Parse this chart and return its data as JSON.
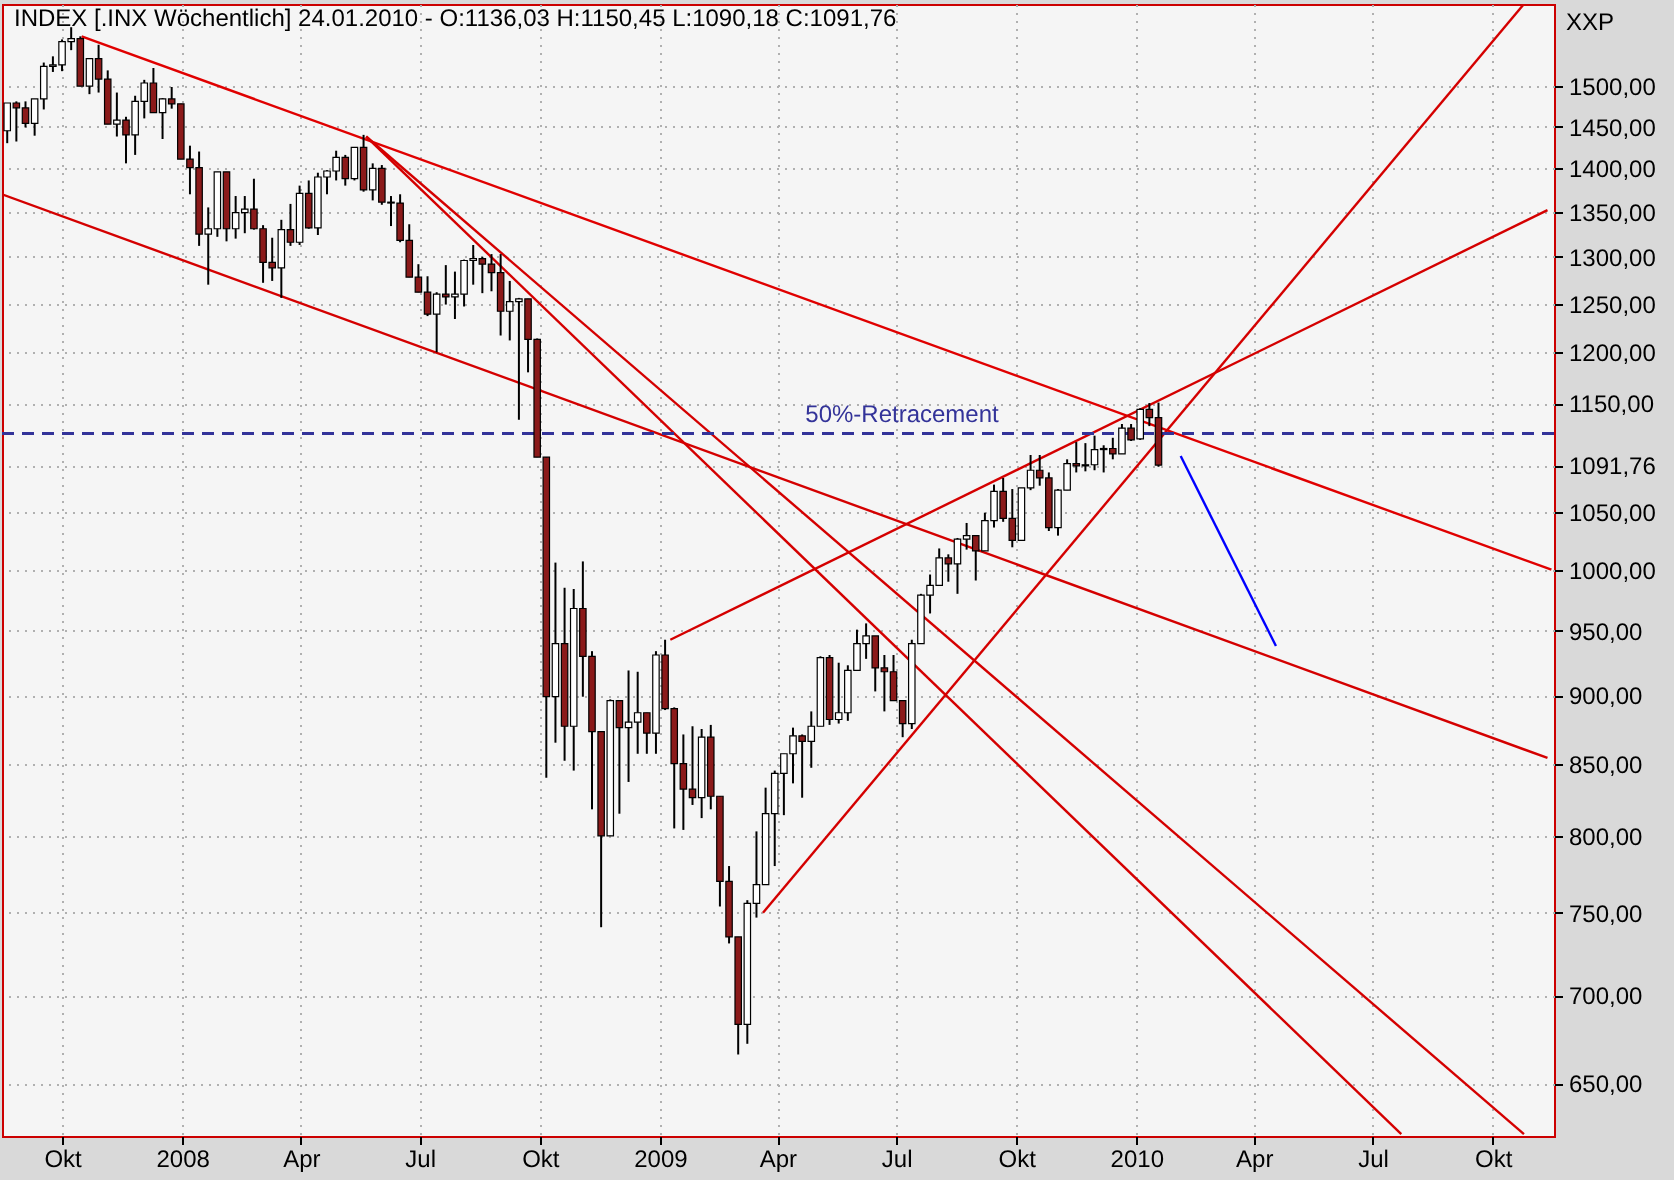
{
  "chart_data": {
    "type": "candlestick",
    "title": "INDEX [.INX  Wöchentlich] 24.01.2010 - O:1136,03 H:1150,45 L:1090,18 C:1091,76",
    "colors": [
      "#ffffff",
      "#8b1a1a",
      "#8b1a1a",
      "#ffffff",
      "#ffffff",
      "#ffffff",
      "#ffffff",
      "#ffffff",
      "#8b1a1a",
      "#ffffff",
      "#8b1a1a",
      "#8b1a1a",
      "#ffffff",
      "#8b1a1a",
      "#ffffff",
      "#ffffff",
      "#8b1a1a",
      "#ffffff",
      "#8b1a1a",
      "#8b1a1a",
      "#8b1a1a",
      "#8b1a1a",
      "#ffffff",
      "#ffffff",
      "#8b1a1a",
      "#ffffff",
      "#ffffff",
      "#8b1a1a",
      "#8b1a1a",
      "#8b1a1a",
      "#ffffff",
      "#8b1a1a",
      "#ffffff",
      "#8b1a1a",
      "#ffffff",
      "#ffffff",
      "#ffffff",
      "#8b1a1a",
      "#ffffff",
      "#8b1a1a",
      "#ffffff",
      "#8b1a1a",
      "#8b1a1a",
      "#8b1a1a",
      "#8b1a1a",
      "#8b1a1a",
      "#8b1a1a",
      "#ffffff",
      "#8b1a1a",
      "#ffffff",
      "#ffffff",
      "#ffffff",
      "#8b1a1a",
      "#8b1a1a",
      "#8b1a1a",
      "#ffffff",
      "#ffffff",
      "#8b1a1a",
      "#8b1a1a",
      "#8b1a1a",
      "#ffffff",
      "#8b1a1a",
      "#ffffff",
      "#8b1a1a",
      "#8b1a1a",
      "#8b1a1a",
      "#ffffff",
      "#8b1a1a",
      "#ffffff",
      "#ffffff",
      "#8b1a1a",
      "#ffffff",
      "#8b1a1a",
      "#8b1a1a",
      "#8b1a1a",
      "#8b1a1a",
      "#ffffff",
      "#8b1a1a",
      "#8b1a1a",
      "#8b1a1a",
      "#8b1a1a",
      "#ffffff",
      "#ffffff",
      "#ffffff",
      "#ffffff",
      "#ffffff",
      "#ffffff",
      "#8b1a1a",
      "#ffffff",
      "#ffffff",
      "#8b1a1a",
      "#ffffff",
      "#ffffff",
      "#ffffff",
      "#ffffff",
      "#8b1a1a",
      "#8b1a1a",
      "#8b1a1a",
      "#8b1a1a",
      "#ffffff",
      "#ffffff",
      "#ffffff",
      "#ffffff",
      "#8b1a1a",
      "#ffffff",
      "#ffffff",
      "#8b1a1a",
      "#ffffff",
      "#ffffff",
      "#8b1a1a",
      "#8b1a1a",
      "#ffffff",
      "#ffffff",
      "#8b1a1a",
      "#8b1a1a",
      "#ffffff",
      "#ffffff",
      "#8b1a1a",
      "#ffffff",
      "#ffffff",
      "#ffffff",
      "#8b1a1a",
      "#ffffff",
      "#8b1a1a",
      "#ffffff",
      "#8b1a1a",
      "#8b1a1a"
    ],
    "log": "y",
    "grid": true,
    "x": [
      "2007-08-20",
      "2007-08-27",
      "2007-09-03",
      "2007-09-10",
      "2007-09-17",
      "2007-09-24",
      "2007-10-01",
      "2007-10-08",
      "2007-10-15",
      "2007-10-22",
      "2007-10-29",
      "2007-11-05",
      "2007-11-12",
      "2007-11-19",
      "2007-11-26",
      "2007-12-03",
      "2007-12-10",
      "2007-12-17",
      "2007-12-24",
      "2007-12-31",
      "2008-01-07",
      "2008-01-14",
      "2008-01-21",
      "2008-01-28",
      "2008-02-04",
      "2008-02-11",
      "2008-02-18",
      "2008-02-25",
      "2008-03-03",
      "2008-03-10",
      "2008-03-17",
      "2008-03-24",
      "2008-03-31",
      "2008-04-07",
      "2008-04-14",
      "2008-04-21",
      "2008-04-28",
      "2008-05-05",
      "2008-05-12",
      "2008-05-19",
      "2008-05-26",
      "2008-06-02",
      "2008-06-09",
      "2008-06-16",
      "2008-06-23",
      "2008-06-30",
      "2008-07-07",
      "2008-07-14",
      "2008-07-21",
      "2008-07-28",
      "2008-08-04",
      "2008-08-11",
      "2008-08-18",
      "2008-08-25",
      "2008-09-01",
      "2008-09-08",
      "2008-09-15",
      "2008-09-22",
      "2008-09-29",
      "2008-10-06",
      "2008-10-13",
      "2008-10-20",
      "2008-10-27",
      "2008-11-03",
      "2008-11-10",
      "2008-11-17",
      "2008-11-24",
      "2008-12-01",
      "2008-12-08",
      "2008-12-15",
      "2008-12-22",
      "2008-12-29",
      "2009-01-05",
      "2009-01-12",
      "2009-01-19",
      "2009-01-26",
      "2009-02-02",
      "2009-02-09",
      "2009-02-16",
      "2009-02-23",
      "2009-03-02",
      "2009-03-09",
      "2009-03-16",
      "2009-03-23",
      "2009-03-30",
      "2009-04-06",
      "2009-04-13",
      "2009-04-20",
      "2009-04-27",
      "2009-05-04",
      "2009-05-11",
      "2009-05-18",
      "2009-05-25",
      "2009-06-01",
      "2009-06-08",
      "2009-06-15",
      "2009-06-22",
      "2009-06-29",
      "2009-07-06",
      "2009-07-13",
      "2009-07-20",
      "2009-07-27",
      "2009-08-03",
      "2009-08-10",
      "2009-08-17",
      "2009-08-24",
      "2009-08-31",
      "2009-09-07",
      "2009-09-14",
      "2009-09-21",
      "2009-09-28",
      "2009-10-05",
      "2009-10-12",
      "2009-10-19",
      "2009-10-26",
      "2009-11-02",
      "2009-11-09",
      "2009-11-16",
      "2009-11-23",
      "2009-11-30",
      "2009-12-07",
      "2009-12-14",
      "2009-12-21",
      "2009-12-28",
      "2010-01-04",
      "2010-01-11",
      "2010-01-18"
    ],
    "ohlc": [
      [
        1445,
        1479,
        1430,
        1479
      ],
      [
        1479,
        1481,
        1432,
        1473
      ],
      [
        1473,
        1481,
        1449,
        1454
      ],
      [
        1454,
        1484,
        1439,
        1484
      ],
      [
        1484,
        1530,
        1471,
        1525
      ],
      [
        1525,
        1538,
        1518,
        1527
      ],
      [
        1527,
        1560,
        1519,
        1557
      ],
      [
        1557,
        1576,
        1546,
        1561
      ],
      [
        1561,
        1564,
        1500,
        1500
      ],
      [
        1500,
        1535,
        1490,
        1535
      ],
      [
        1535,
        1553,
        1492,
        1509
      ],
      [
        1509,
        1520,
        1453,
        1453
      ],
      [
        1453,
        1492,
        1438,
        1458
      ],
      [
        1458,
        1462,
        1406,
        1440
      ],
      [
        1440,
        1488,
        1416,
        1481
      ],
      [
        1481,
        1508,
        1460,
        1504
      ],
      [
        1504,
        1523,
        1467,
        1467
      ],
      [
        1467,
        1485,
        1435,
        1484
      ],
      [
        1484,
        1499,
        1472,
        1478
      ],
      [
        1478,
        1478,
        1411,
        1411
      ],
      [
        1411,
        1427,
        1370,
        1401
      ],
      [
        1401,
        1420,
        1312,
        1325
      ],
      [
        1325,
        1355,
        1270,
        1331
      ],
      [
        1331,
        1396,
        1322,
        1396
      ],
      [
        1396,
        1396,
        1317,
        1331
      ],
      [
        1331,
        1368,
        1320,
        1349
      ],
      [
        1349,
        1368,
        1326,
        1353
      ],
      [
        1353,
        1388,
        1330,
        1331
      ],
      [
        1331,
        1335,
        1272,
        1294
      ],
      [
        1294,
        1321,
        1274,
        1288
      ],
      [
        1288,
        1341,
        1256,
        1330
      ],
      [
        1330,
        1359,
        1312,
        1316
      ],
      [
        1316,
        1380,
        1313,
        1371
      ],
      [
        1371,
        1386,
        1331,
        1332
      ],
      [
        1332,
        1395,
        1324,
        1390
      ],
      [
        1390,
        1398,
        1370,
        1397
      ],
      [
        1397,
        1421,
        1386,
        1413
      ],
      [
        1413,
        1416,
        1380,
        1388
      ],
      [
        1388,
        1425,
        1386,
        1425
      ],
      [
        1425,
        1440,
        1373,
        1375
      ],
      [
        1375,
        1406,
        1363,
        1400
      ],
      [
        1400,
        1404,
        1358,
        1361
      ],
      [
        1361,
        1368,
        1334,
        1360
      ],
      [
        1360,
        1370,
        1316,
        1318
      ],
      [
        1318,
        1336,
        1278,
        1278
      ],
      [
        1278,
        1292,
        1262,
        1262
      ],
      [
        1262,
        1279,
        1237,
        1239
      ],
      [
        1239,
        1262,
        1200,
        1260
      ],
      [
        1260,
        1291,
        1249,
        1257
      ],
      [
        1257,
        1284,
        1234,
        1260
      ],
      [
        1260,
        1297,
        1247,
        1296
      ],
      [
        1296,
        1313,
        1270,
        1298
      ],
      [
        1298,
        1300,
        1261,
        1292
      ],
      [
        1292,
        1303,
        1263,
        1283
      ],
      [
        1283,
        1303,
        1217,
        1242
      ],
      [
        1242,
        1274,
        1212,
        1252
      ],
      [
        1252,
        1256,
        1134,
        1255
      ],
      [
        1255,
        1255,
        1180,
        1213
      ],
      [
        1213,
        1214,
        1099,
        1099
      ],
      [
        1099,
        1099,
        840,
        899
      ],
      [
        899,
        1006,
        865,
        940
      ],
      [
        940,
        985,
        852,
        877
      ],
      [
        877,
        984,
        845,
        968
      ],
      [
        968,
        1007,
        899,
        930
      ],
      [
        930,
        934,
        818,
        873
      ],
      [
        873,
        873,
        741,
        800
      ],
      [
        800,
        897,
        800,
        896
      ],
      [
        896,
        896,
        815,
        876
      ],
      [
        876,
        919,
        837,
        880
      ],
      [
        880,
        918,
        857,
        887
      ],
      [
        887,
        887,
        857,
        872
      ],
      [
        872,
        934,
        857,
        931
      ],
      [
        931,
        943,
        889,
        890
      ],
      [
        890,
        891,
        805,
        850
      ],
      [
        850,
        871,
        804,
        832
      ],
      [
        832,
        877,
        821,
        826
      ],
      [
        826,
        875,
        812,
        869
      ],
      [
        869,
        878,
        818,
        827
      ],
      [
        827,
        827,
        754,
        770
      ],
      [
        770,
        780,
        731,
        735
      ],
      [
        735,
        735,
        666,
        683
      ],
      [
        683,
        758,
        672,
        756
      ],
      [
        756,
        803,
        747,
        768
      ],
      [
        768,
        833,
        768,
        815
      ],
      [
        815,
        845,
        780,
        843
      ],
      [
        843,
        857,
        814,
        857
      ],
      [
        857,
        876,
        836,
        870
      ],
      [
        870,
        871,
        826,
        866
      ],
      [
        866,
        888,
        847,
        877
      ],
      [
        877,
        930,
        877,
        929
      ],
      [
        929,
        931,
        878,
        882
      ],
      [
        882,
        925,
        879,
        887
      ],
      [
        887,
        923,
        881,
        919
      ],
      [
        919,
        951,
        919,
        940
      ],
      [
        940,
        956,
        928,
        946
      ],
      [
        946,
        946,
        903,
        921
      ],
      [
        921,
        931,
        888,
        918
      ],
      [
        918,
        931,
        896,
        896
      ],
      [
        896,
        896,
        869,
        879
      ],
      [
        879,
        943,
        875,
        940
      ],
      [
        940,
        980,
        940,
        979
      ],
      [
        979,
        996,
        964,
        987
      ],
      [
        987,
        1018,
        987,
        1010
      ],
      [
        1010,
        1013,
        990,
        1005
      ],
      [
        1005,
        1027,
        980,
        1026
      ],
      [
        1026,
        1040,
        1017,
        1029
      ],
      [
        1029,
        1029,
        991,
        1016
      ],
      [
        1016,
        1049,
        1016,
        1042
      ],
      [
        1042,
        1074,
        1036,
        1068
      ],
      [
        1068,
        1080,
        1041,
        1044
      ],
      [
        1044,
        1070,
        1019,
        1025
      ],
      [
        1025,
        1071,
        1025,
        1071
      ],
      [
        1071,
        1101,
        1069,
        1087
      ],
      [
        1087,
        1101,
        1073,
        1080
      ],
      [
        1080,
        1085,
        1033,
        1036
      ],
      [
        1036,
        1070,
        1029,
        1069
      ],
      [
        1069,
        1097,
        1069,
        1093
      ],
      [
        1093,
        1113,
        1085,
        1091
      ],
      [
        1091,
        1112,
        1086,
        1092
      ],
      [
        1092,
        1119,
        1087,
        1106
      ],
      [
        1106,
        1110,
        1085,
        1107
      ],
      [
        1107,
        1117,
        1097,
        1102
      ],
      [
        1102,
        1130,
        1102,
        1126
      ],
      [
        1126,
        1130,
        1114,
        1115
      ],
      [
        1116,
        1145,
        1115,
        1144
      ],
      [
        1144,
        1150,
        1128,
        1136
      ],
      [
        1136.03,
        1150.45,
        1090.18,
        1091.76
      ]
    ],
    "series": [
      {
        "type": "line",
        "color": "#e00000",
        "x": [
          "2007-10-16",
          "2010-11-15"
        ],
        "values": [
          1564,
          1000
        ]
      },
      {
        "type": "line",
        "color": "#d40000",
        "x": [
          "2007-08-16",
          "2010-11-12"
        ],
        "values": [
          1370,
          854
        ]
      },
      {
        "type": "line",
        "color": "#d40000",
        "x": [
          "2008-05-21",
          "2010-07-23"
        ],
        "values": [
          1438,
          623
        ]
      },
      {
        "type": "line",
        "color": "#d40000",
        "x": [
          "2008-05-21",
          "2010-10-25"
        ],
        "values": [
          1438,
          623
        ]
      },
      {
        "type": "line",
        "color": "#d40000",
        "x": [
          "2009-01-09",
          "2010-11-12"
        ],
        "values": [
          943,
          1352
        ]
      },
      {
        "type": "line",
        "color": "#d40000",
        "x": [
          "2009-03-21",
          "2010-10-25"
        ],
        "values": [
          750,
          1607
        ]
      },
      {
        "type": "line",
        "color": "#0000ff",
        "x": [
          "2010-02-04",
          "2010-04-18"
        ],
        "values": [
          1100,
          938
        ]
      }
    ],
    "ref_lines": [
      {
        "axis": "y",
        "value": 1121,
        "label": "50%-Retracement",
        "color": "#333399",
        "line_style": "dashed"
      }
    ],
    "annotations": [
      "XXP"
    ],
    "xlim": [
      "2007-08-16",
      "2010-11-17"
    ],
    "xticks": [
      {
        "value": "2007-10-01",
        "label": "Okt"
      },
      {
        "value": "2008-01-01",
        "label": "2008"
      },
      {
        "value": "2008-04-01",
        "label": "Apr"
      },
      {
        "value": "2008-07-01",
        "label": "Jul"
      },
      {
        "value": "2008-10-01",
        "label": "Okt"
      },
      {
        "value": "2009-01-01",
        "label": "2009"
      },
      {
        "value": "2009-04-01",
        "label": "Apr"
      },
      {
        "value": "2009-07-01",
        "label": "Jul"
      },
      {
        "value": "2009-10-01",
        "label": "Okt"
      },
      {
        "value": "2010-01-01",
        "label": "2010"
      },
      {
        "value": "2010-04-01",
        "label": "Apr"
      },
      {
        "value": "2010-07-01",
        "label": "Jul"
      },
      {
        "value": "2010-10-01",
        "label": "Okt"
      }
    ],
    "ylim": [
      622,
      1607
    ],
    "yticks": [
      {
        "value": 650,
        "label": "650,00"
      },
      {
        "value": 700,
        "label": "700,00"
      },
      {
        "value": 750,
        "label": "750,00"
      },
      {
        "value": 800,
        "label": "800,00"
      },
      {
        "value": 850,
        "label": "850,00"
      },
      {
        "value": 900,
        "label": "900,00"
      },
      {
        "value": 950,
        "label": "950,00"
      },
      {
        "value": 1000,
        "label": "1000,00"
      },
      {
        "value": 1050,
        "label": "1050,00"
      },
      {
        "value": 1091.76,
        "label": "1091,76"
      },
      {
        "value": 1150,
        "label": "1150,00"
      },
      {
        "value": 1200,
        "label": "1200,00"
      },
      {
        "value": 1250,
        "label": "1250,00"
      },
      {
        "value": 1300,
        "label": "1300,00"
      },
      {
        "value": 1350,
        "label": "1350,00"
      },
      {
        "value": 1400,
        "label": "1400,00"
      },
      {
        "value": 1450,
        "label": "1450,00"
      },
      {
        "value": 1500,
        "label": "1500,00"
      }
    ]
  }
}
